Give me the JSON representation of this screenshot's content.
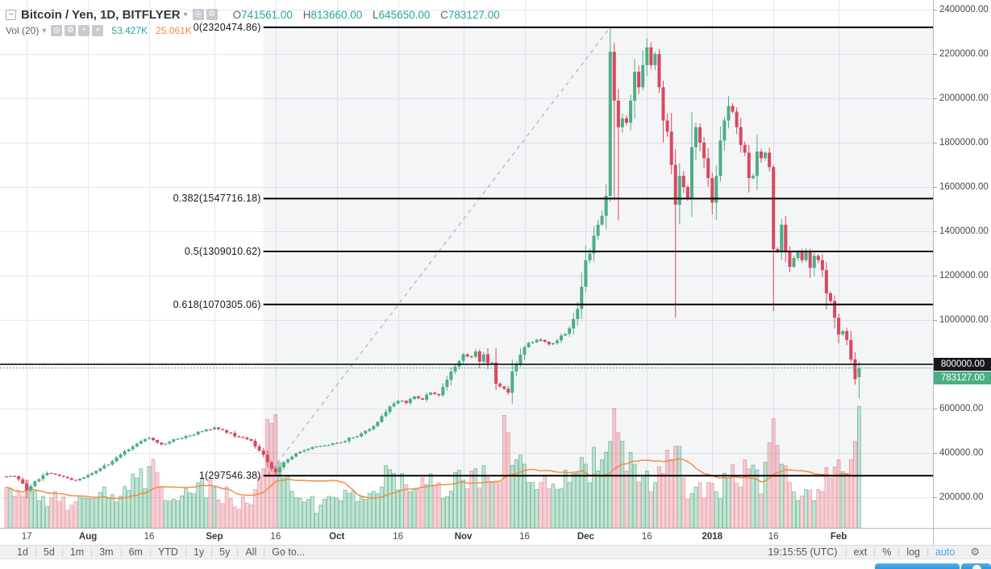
{
  "header": {
    "collapse_glyph": "−",
    "symbol_title": "Bitcoin / Yen, 1D, BITFLYER",
    "ohlc": {
      "o_label": "O",
      "o": "741561.00",
      "h_label": "H",
      "h": "813660.00",
      "l_label": "L",
      "l": "645650.00",
      "c_label": "C",
      "c": "783127.00"
    },
    "indicator": {
      "name": "Vol (20)",
      "value_1": "53.427K",
      "value_2": "25.061K"
    }
  },
  "colors": {
    "up": "#4cae85",
    "down": "#d9485e",
    "vol_up": "rgba(83,185,135,0.33)",
    "vol_up_border": "rgba(70,160,118,0.75)",
    "vol_down": "rgba(219,86,104,0.26)",
    "vol_down_border": "rgba(219,86,104,0.55)",
    "ma_line": "#f78637",
    "grid": "#e5e8ef",
    "fib_line": "#000000",
    "fib_fill": "rgba(120,123,134,0.08)",
    "trend_dash": "#b3b6bd",
    "last_price_green": "#4cae85",
    "badge_black": "#16181d",
    "accent_blue": "#4aa5e0"
  },
  "fib_levels": [
    {
      "label": "0(2320474.86)",
      "value": 2320474.86
    },
    {
      "label": "0.382(1547716.18)",
      "value": 1547716.18
    },
    {
      "label": "0.5(1309010.62)",
      "value": 1309010.62
    },
    {
      "label": "0.618(1070305.06)",
      "value": 1070305.06
    },
    {
      "label": "1(297546.38)",
      "value": 297546.38
    }
  ],
  "horizontal_line": {
    "value": 800000,
    "label": "800000.00"
  },
  "last_price": {
    "value": 783127,
    "label": "783127.00"
  },
  "toolbar": {
    "ranges": [
      "1d",
      "5d",
      "1m",
      "3m",
      "6m",
      "YTD",
      "1y",
      "5y",
      "All"
    ],
    "goto_label": "Go to...",
    "time": "19:15:55 (UTC)",
    "ext_label": "ext",
    "percent_label": "%",
    "log_label": "log",
    "auto_label": "auto"
  },
  "chart_data": {
    "type": "candlestick+volume",
    "title": "Bitcoin / Yen, 1D, BITFLYER",
    "y_axis": {
      "min": 200000,
      "max": 2400000,
      "tick_step": 200000,
      "ticks": [
        "2400000.00",
        "2200000.00",
        "2000000.00",
        "1800000.00",
        "1600000.00",
        "1400000.00",
        "1200000.00",
        "1000000.00",
        "800000.00",
        "600000.00",
        "400000.00",
        "200000.00"
      ]
    },
    "x_axis": {
      "ticks": [
        {
          "day": 3,
          "label": "17",
          "bold": false
        },
        {
          "day": 18,
          "label": "Aug",
          "bold": true
        },
        {
          "day": 33,
          "label": "16",
          "bold": false
        },
        {
          "day": 49,
          "label": "Sep",
          "bold": true
        },
        {
          "day": 64,
          "label": "16",
          "bold": false
        },
        {
          "day": 79,
          "label": "Oct",
          "bold": true
        },
        {
          "day": 94,
          "label": "16",
          "bold": false
        },
        {
          "day": 110,
          "label": "Nov",
          "bold": true
        },
        {
          "day": 125,
          "label": "16",
          "bold": false
        },
        {
          "day": 140,
          "label": "Dec",
          "bold": true
        },
        {
          "day": 155,
          "label": "16",
          "bold": false
        },
        {
          "day": 171,
          "label": "2018",
          "bold": true
        },
        {
          "day": 186,
          "label": "16",
          "bold": false
        },
        {
          "day": 202,
          "label": "Feb",
          "bold": true
        }
      ]
    },
    "days_total": 208,
    "price_keypoints": [
      [
        0,
        295000
      ],
      [
        2,
        262000
      ],
      [
        3,
        232000
      ],
      [
        5,
        272000
      ],
      [
        8,
        310000
      ],
      [
        12,
        292000
      ],
      [
        15,
        276000
      ],
      [
        18,
        300000
      ],
      [
        21,
        330000
      ],
      [
        24,
        362000
      ],
      [
        27,
        408000
      ],
      [
        30,
        442000
      ],
      [
        33,
        468000
      ],
      [
        36,
        438000
      ],
      [
        39,
        462000
      ],
      [
        43,
        478000
      ],
      [
        46,
        498000
      ],
      [
        49,
        515000
      ],
      [
        52,
        492000
      ],
      [
        55,
        472000
      ],
      [
        58,
        455000
      ],
      [
        61,
        392000
      ],
      [
        63,
        330000
      ],
      [
        64,
        312000
      ],
      [
        66,
        358000
      ],
      [
        69,
        398000
      ],
      [
        72,
        418000
      ],
      [
        75,
        432000
      ],
      [
        79,
        445000
      ],
      [
        83,
        470000
      ],
      [
        86,
        500000
      ],
      [
        89,
        540000
      ],
      [
        92,
        610000
      ],
      [
        94,
        635000
      ],
      [
        96,
        625000
      ],
      [
        98,
        655000
      ],
      [
        100,
        640000
      ],
      [
        102,
        672000
      ],
      [
        104,
        660000
      ],
      [
        106,
        730000
      ],
      [
        108,
        790000
      ],
      [
        110,
        845000
      ],
      [
        112,
        835000
      ],
      [
        113,
        858000
      ],
      [
        114,
        812000
      ],
      [
        115,
        845000
      ],
      [
        116,
        805000
      ],
      [
        117,
        808000
      ],
      [
        118,
        712000
      ],
      [
        119,
        700000
      ],
      [
        121,
        672000
      ],
      [
        122,
        768000
      ],
      [
        123,
        800000
      ],
      [
        125,
        877000
      ],
      [
        127,
        900000
      ],
      [
        129,
        910000
      ],
      [
        131,
        890000
      ],
      [
        134,
        930000
      ],
      [
        136,
        962000
      ],
      [
        138,
        1050000
      ],
      [
        139,
        1150000
      ],
      [
        140,
        1270000
      ],
      [
        141,
        1300000
      ],
      [
        142,
        1380000
      ],
      [
        143,
        1430000
      ],
      [
        144,
        1470000
      ],
      [
        145,
        1560000
      ],
      [
        146,
        2210000
      ],
      [
        147,
        1990000
      ],
      [
        148,
        1870000
      ],
      [
        149,
        1910000
      ],
      [
        150,
        1890000
      ],
      [
        151,
        1990000
      ],
      [
        152,
        2120000
      ],
      [
        153,
        2050000
      ],
      [
        154,
        2150000
      ],
      [
        155,
        2230000
      ],
      [
        156,
        2150000
      ],
      [
        157,
        2200000
      ],
      [
        158,
        2050000
      ],
      [
        159,
        1900000
      ],
      [
        160,
        1850000
      ],
      [
        161,
        1700000
      ],
      [
        162,
        1520000
      ],
      [
        163,
        1650000
      ],
      [
        164,
        1600000
      ],
      [
        165,
        1550000
      ],
      [
        166,
        1780000
      ],
      [
        167,
        1870000
      ],
      [
        168,
        1800000
      ],
      [
        169,
        1730000
      ],
      [
        170,
        1640000
      ],
      [
        171,
        1530000
      ],
      [
        172,
        1650000
      ],
      [
        173,
        1810000
      ],
      [
        174,
        1900000
      ],
      [
        175,
        1965000
      ],
      [
        176,
        1940000
      ],
      [
        177,
        1870000
      ],
      [
        178,
        1790000
      ],
      [
        179,
        1755000
      ],
      [
        180,
        1640000
      ],
      [
        181,
        1650000
      ],
      [
        182,
        1760000
      ],
      [
        183,
        1730000
      ],
      [
        184,
        1755000
      ],
      [
        185,
        1690000
      ],
      [
        186,
        1320000
      ],
      [
        187,
        1310000
      ],
      [
        188,
        1430000
      ],
      [
        189,
        1310000
      ],
      [
        190,
        1240000
      ],
      [
        191,
        1280000
      ],
      [
        192,
        1310000
      ],
      [
        193,
        1270000
      ],
      [
        194,
        1305000
      ],
      [
        195,
        1235000
      ],
      [
        196,
        1290000
      ],
      [
        197,
        1270000
      ],
      [
        198,
        1225000
      ],
      [
        199,
        1120000
      ],
      [
        200,
        1085000
      ],
      [
        201,
        1010000
      ],
      [
        202,
        935000
      ],
      [
        203,
        950000
      ],
      [
        204,
        910000
      ],
      [
        205,
        822000
      ],
      [
        206,
        733000
      ],
      [
        207,
        783127
      ]
    ],
    "volume_keypoints": [
      [
        0,
        14
      ],
      [
        3,
        21
      ],
      [
        6,
        12
      ],
      [
        10,
        16
      ],
      [
        14,
        10
      ],
      [
        18,
        13
      ],
      [
        22,
        18
      ],
      [
        26,
        14
      ],
      [
        30,
        22
      ],
      [
        33,
        27
      ],
      [
        36,
        18
      ],
      [
        40,
        12
      ],
      [
        44,
        15
      ],
      [
        49,
        18
      ],
      [
        53,
        13
      ],
      [
        57,
        11
      ],
      [
        61,
        26
      ],
      [
        63,
        46
      ],
      [
        66,
        22
      ],
      [
        70,
        13
      ],
      [
        75,
        10
      ],
      [
        80,
        12
      ],
      [
        85,
        14
      ],
      [
        90,
        18
      ],
      [
        93,
        24
      ],
      [
        97,
        16
      ],
      [
        101,
        19
      ],
      [
        105,
        13
      ],
      [
        110,
        21
      ],
      [
        113,
        26
      ],
      [
        117,
        20
      ],
      [
        121,
        42
      ],
      [
        123,
        30
      ],
      [
        125,
        28
      ],
      [
        129,
        20
      ],
      [
        133,
        17
      ],
      [
        137,
        24
      ],
      [
        140,
        28
      ],
      [
        144,
        30
      ],
      [
        146,
        38
      ],
      [
        148,
        42
      ],
      [
        150,
        25
      ],
      [
        152,
        28
      ],
      [
        155,
        25
      ],
      [
        157,
        20
      ],
      [
        159,
        24
      ],
      [
        162,
        36
      ],
      [
        164,
        22
      ],
      [
        167,
        18
      ],
      [
        170,
        20
      ],
      [
        172,
        16
      ],
      [
        175,
        22
      ],
      [
        178,
        18
      ],
      [
        180,
        26
      ],
      [
        183,
        15
      ],
      [
        186,
        48
      ],
      [
        188,
        28
      ],
      [
        190,
        20
      ],
      [
        193,
        14
      ],
      [
        196,
        12
      ],
      [
        198,
        16
      ],
      [
        200,
        22
      ],
      [
        202,
        30
      ],
      [
        204,
        24
      ],
      [
        205,
        30
      ],
      [
        206,
        38
      ],
      [
        207,
        53.427
      ]
    ],
    "candle_overrides": {
      "3": {
        "low": 195000
      },
      "64": {
        "low": 297546.38
      },
      "146": {
        "open": 1560000,
        "close": 2210000,
        "high": 2320474.86,
        "low": 1535000
      },
      "147": {
        "open": 2210000,
        "close": 1990000,
        "high": 2250000,
        "low": 1540000
      },
      "148": {
        "low": 1450000
      },
      "155": {
        "high": 2270000
      },
      "162": {
        "low": 1010000
      },
      "175": {
        "high": 2010000
      },
      "186": {
        "open": 1690000,
        "close": 1320000,
        "high": 1700000,
        "low": 1040000
      },
      "205": {
        "open": 910000,
        "close": 822000
      },
      "206": {
        "open": 822000,
        "close": 733000
      },
      "207": {
        "open": 741561,
        "high": 813660,
        "low": 645650,
        "close": 783127
      }
    },
    "volume_ma_window": 20,
    "fib": {
      "trend_start_day": 62,
      "trend_start_price": 297546.38,
      "trend_end_day": 146,
      "trend_end_price": 2320474.86,
      "shade_start_day": 61
    },
    "last": {
      "open": 741561,
      "high": 813660,
      "low": 645650,
      "close": 783127,
      "volume_k": 53.427,
      "volume_ma_k": 25.061
    }
  }
}
